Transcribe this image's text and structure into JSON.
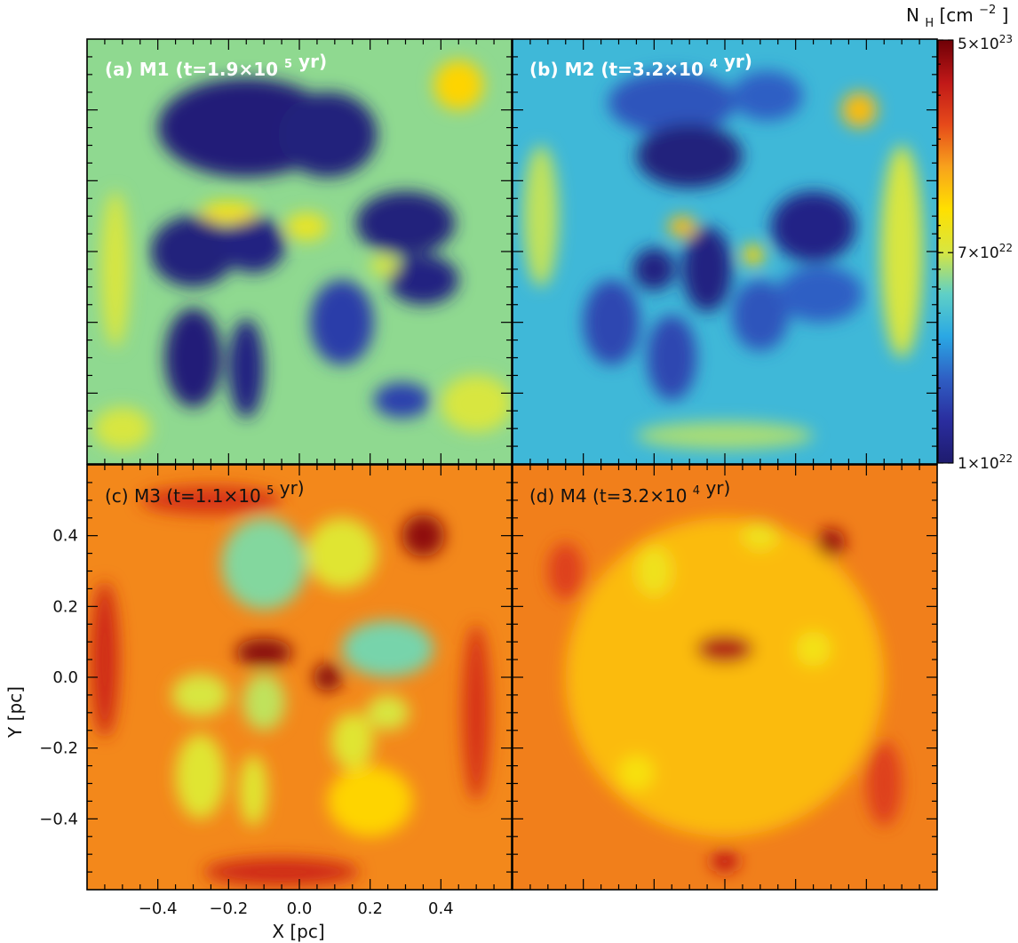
{
  "chart_data": {
    "type": "heatmap",
    "colorbar": {
      "label_main": "N",
      "label_sub": "H",
      "label_unit_open": " [cm",
      "label_unit_exp": "−2",
      "label_unit_close": "]",
      "scale": "log",
      "range": [
        1e+22,
        5e+23
      ],
      "ticks": [
        {
          "value": 5e+23,
          "mant": "5×10",
          "exp": "23"
        },
        {
          "value": 7e+22,
          "mant": "7×10",
          "exp": "22"
        },
        {
          "value": 1e+22,
          "mant": "1×10",
          "exp": "22"
        }
      ],
      "stops": [
        "#1e1b6e",
        "#2a2d9e",
        "#2f5fc4",
        "#2aa8e4",
        "#5fd0c6",
        "#d8e640",
        "#ffe000",
        "#f8a21c",
        "#e64a1a",
        "#c01818",
        "#6e0006"
      ]
    },
    "xlabel": "X [pc]",
    "ylabel": "Y [pc]",
    "xlim": [
      -0.6,
      0.6
    ],
    "ylim": [
      -0.6,
      0.6
    ],
    "x_ticks": [
      "−0.4",
      "−0.2",
      "0.0",
      "0.2",
      "0.4"
    ],
    "y_ticks": [
      "0.4",
      "0.2",
      "0.0",
      "−0.2",
      "−0.4"
    ],
    "panels": [
      {
        "id": "a",
        "letter": "(a)",
        "model": "M1",
        "t_mant": "1.9×10",
        "t_exp": "5",
        "unit": "yr",
        "background": 0.44,
        "blobs": [
          {
            "x": -0.15,
            "y": 0.35,
            "rx": 0.25,
            "ry": 0.14,
            "v": 0.02
          },
          {
            "x": 0.08,
            "y": 0.33,
            "rx": 0.14,
            "ry": 0.12,
            "v": 0.03
          },
          {
            "x": 0.3,
            "y": 0.08,
            "rx": 0.14,
            "ry": 0.09,
            "v": 0.03
          },
          {
            "x": 0.35,
            "y": -0.08,
            "rx": 0.1,
            "ry": 0.07,
            "v": 0.04
          },
          {
            "x": -0.3,
            "y": 0.0,
            "rx": 0.12,
            "ry": 0.1,
            "v": 0.03
          },
          {
            "x": -0.13,
            "y": 0.02,
            "rx": 0.09,
            "ry": 0.08,
            "v": 0.04
          },
          {
            "x": -0.3,
            "y": -0.3,
            "rx": 0.08,
            "ry": 0.14,
            "v": 0.02
          },
          {
            "x": -0.15,
            "y": -0.33,
            "rx": 0.05,
            "ry": 0.14,
            "v": 0.04
          },
          {
            "x": 0.12,
            "y": -0.2,
            "rx": 0.09,
            "ry": 0.12,
            "v": 0.13
          },
          {
            "x": 0.29,
            "y": -0.42,
            "rx": 0.08,
            "ry": 0.05,
            "v": 0.14
          },
          {
            "x": -0.2,
            "y": 0.11,
            "rx": 0.08,
            "ry": 0.03,
            "v": 0.58
          },
          {
            "x": 0.02,
            "y": 0.07,
            "rx": 0.06,
            "ry": 0.04,
            "v": 0.54
          },
          {
            "x": 0.24,
            "y": -0.04,
            "rx": 0.04,
            "ry": 0.03,
            "v": 0.5
          },
          {
            "x": 0.45,
            "y": 0.47,
            "rx": 0.07,
            "ry": 0.07,
            "v": 0.62
          },
          {
            "x": -0.52,
            "y": -0.05,
            "rx": 0.04,
            "ry": 0.22,
            "v": 0.5
          },
          {
            "x": 0.5,
            "y": -0.43,
            "rx": 0.1,
            "ry": 0.08,
            "v": 0.5
          },
          {
            "x": -0.5,
            "y": -0.5,
            "rx": 0.08,
            "ry": 0.06,
            "v": 0.5
          }
        ]
      },
      {
        "id": "b",
        "letter": "(b)",
        "model": "M2",
        "t_mant": "3.2×10",
        "t_exp": "4",
        "unit": "yr",
        "background": 0.34,
        "blobs": [
          {
            "x": -0.15,
            "y": 0.42,
            "rx": 0.18,
            "ry": 0.09,
            "v": 0.18
          },
          {
            "x": 0.12,
            "y": 0.44,
            "rx": 0.1,
            "ry": 0.07,
            "v": 0.2
          },
          {
            "x": -0.1,
            "y": 0.27,
            "rx": 0.15,
            "ry": 0.09,
            "v": 0.03
          },
          {
            "x": 0.25,
            "y": 0.07,
            "rx": 0.12,
            "ry": 0.1,
            "v": 0.05
          },
          {
            "x": -0.2,
            "y": -0.05,
            "rx": 0.06,
            "ry": 0.06,
            "v": 0.04
          },
          {
            "x": -0.05,
            "y": -0.05,
            "rx": 0.07,
            "ry": 0.12,
            "v": 0.04
          },
          {
            "x": -0.32,
            "y": -0.2,
            "rx": 0.08,
            "ry": 0.12,
            "v": 0.15
          },
          {
            "x": -0.15,
            "y": -0.3,
            "rx": 0.07,
            "ry": 0.12,
            "v": 0.15
          },
          {
            "x": 0.1,
            "y": -0.18,
            "rx": 0.08,
            "ry": 0.1,
            "v": 0.18
          },
          {
            "x": 0.27,
            "y": -0.12,
            "rx": 0.12,
            "ry": 0.08,
            "v": 0.2
          },
          {
            "x": 0.38,
            "y": 0.4,
            "rx": 0.05,
            "ry": 0.05,
            "v": 0.66
          },
          {
            "x": -0.12,
            "y": 0.07,
            "rx": 0.04,
            "ry": 0.03,
            "v": 0.66
          },
          {
            "x": 0.08,
            "y": -0.01,
            "rx": 0.03,
            "ry": 0.03,
            "v": 0.62
          },
          {
            "x": 0.5,
            "y": 0.0,
            "rx": 0.06,
            "ry": 0.3,
            "v": 0.5
          },
          {
            "x": -0.52,
            "y": 0.1,
            "rx": 0.05,
            "ry": 0.2,
            "v": 0.48
          },
          {
            "x": 0.0,
            "y": -0.52,
            "rx": 0.25,
            "ry": 0.04,
            "v": 0.46
          }
        ]
      },
      {
        "id": "c",
        "letter": "(c)",
        "model": "M3",
        "t_mant": "1.1×10",
        "t_exp": "5",
        "unit": "yr",
        "background": 0.73,
        "blobs": [
          {
            "x": -0.1,
            "y": 0.32,
            "rx": 0.12,
            "ry": 0.13,
            "v": 0.43
          },
          {
            "x": 0.12,
            "y": 0.35,
            "rx": 0.1,
            "ry": 0.1,
            "v": 0.52
          },
          {
            "x": 0.25,
            "y": 0.08,
            "rx": 0.13,
            "ry": 0.08,
            "v": 0.42
          },
          {
            "x": -0.28,
            "y": -0.05,
            "rx": 0.08,
            "ry": 0.06,
            "v": 0.5
          },
          {
            "x": -0.1,
            "y": -0.07,
            "rx": 0.06,
            "ry": 0.08,
            "v": 0.48
          },
          {
            "x": -0.28,
            "y": -0.28,
            "rx": 0.07,
            "ry": 0.12,
            "v": 0.52
          },
          {
            "x": -0.13,
            "y": -0.32,
            "rx": 0.04,
            "ry": 0.1,
            "v": 0.52
          },
          {
            "x": 0.15,
            "y": -0.18,
            "rx": 0.06,
            "ry": 0.08,
            "v": 0.52
          },
          {
            "x": 0.25,
            "y": -0.1,
            "rx": 0.06,
            "ry": 0.05,
            "v": 0.5
          },
          {
            "x": -0.1,
            "y": 0.07,
            "rx": 0.08,
            "ry": 0.04,
            "v": 0.97
          },
          {
            "x": 0.08,
            "y": 0.0,
            "rx": 0.04,
            "ry": 0.04,
            "v": 0.97
          },
          {
            "x": 0.35,
            "y": 0.4,
            "rx": 0.06,
            "ry": 0.06,
            "v": 0.96
          },
          {
            "x": -0.55,
            "y": 0.05,
            "rx": 0.04,
            "ry": 0.22,
            "v": 0.86
          },
          {
            "x": 0.5,
            "y": -0.1,
            "rx": 0.04,
            "ry": 0.25,
            "v": 0.84
          },
          {
            "x": -0.05,
            "y": -0.55,
            "rx": 0.22,
            "ry": 0.04,
            "v": 0.86
          },
          {
            "x": -0.25,
            "y": 0.5,
            "rx": 0.2,
            "ry": 0.04,
            "v": 0.84
          },
          {
            "x": 0.2,
            "y": -0.35,
            "rx": 0.12,
            "ry": 0.1,
            "v": 0.62
          }
        ]
      },
      {
        "id": "d",
        "letter": "(d)",
        "model": "M4",
        "t_mant": "3.2×10",
        "t_exp": "4",
        "unit": "yr",
        "background": 0.74,
        "blobs": [
          {
            "x": 0.0,
            "y": 0.0,
            "rx": 0.45,
            "ry": 0.45,
            "v": 0.66
          },
          {
            "x": -0.2,
            "y": 0.3,
            "rx": 0.05,
            "ry": 0.07,
            "v": 0.56
          },
          {
            "x": 0.1,
            "y": 0.4,
            "rx": 0.05,
            "ry": 0.04,
            "v": 0.56
          },
          {
            "x": 0.25,
            "y": 0.08,
            "rx": 0.05,
            "ry": 0.05,
            "v": 0.57
          },
          {
            "x": -0.25,
            "y": -0.27,
            "rx": 0.05,
            "ry": 0.05,
            "v": 0.58
          },
          {
            "x": 0.0,
            "y": 0.08,
            "rx": 0.08,
            "ry": 0.04,
            "v": 0.92
          },
          {
            "x": 0.3,
            "y": 0.38,
            "rx": 0.04,
            "ry": 0.04,
            "v": 0.95
          },
          {
            "x": 0.0,
            "y": -0.52,
            "rx": 0.04,
            "ry": 0.03,
            "v": 0.9
          },
          {
            "x": -0.45,
            "y": 0.3,
            "rx": 0.05,
            "ry": 0.08,
            "v": 0.82
          },
          {
            "x": 0.45,
            "y": -0.3,
            "rx": 0.05,
            "ry": 0.12,
            "v": 0.82
          }
        ]
      }
    ]
  }
}
